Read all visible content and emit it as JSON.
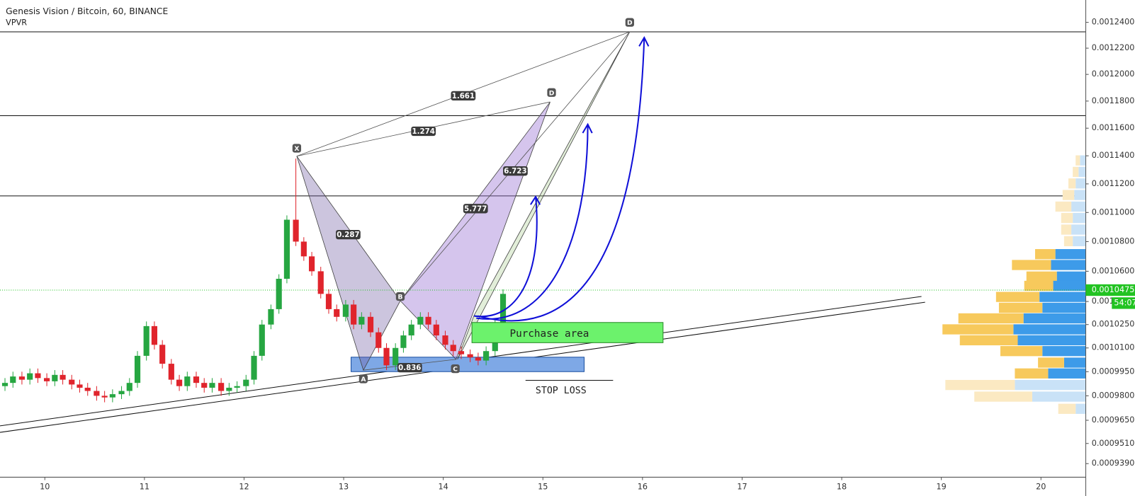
{
  "header": {
    "title": "Genesis Vision / Bitcoin, 60, BINANCE",
    "indicator": "VPVR"
  },
  "chart_data": {
    "type": "candlestick",
    "up_color": "#26a641",
    "down_color": "#e0242c",
    "log_scale": true,
    "grid": false,
    "x": [
      9.6,
      9.68,
      9.77,
      9.85,
      9.93,
      10.02,
      10.1,
      10.18,
      10.27,
      10.35,
      10.43,
      10.52,
      10.6,
      10.68,
      10.77,
      10.85,
      10.93,
      11.02,
      11.1,
      11.18,
      11.27,
      11.35,
      11.43,
      11.52,
      11.6,
      11.68,
      11.77,
      11.85,
      11.93,
      12.02,
      12.1,
      12.18,
      12.27,
      12.35,
      12.43,
      12.52,
      12.6,
      12.68,
      12.77,
      12.85,
      12.93,
      13.02,
      13.1,
      13.18,
      13.27,
      13.35,
      13.43,
      13.52,
      13.6,
      13.68,
      13.77,
      13.85,
      13.93,
      14.02,
      14.1,
      14.18,
      14.27,
      14.35,
      14.43,
      14.52,
      14.6
    ],
    "open": [
      0.000986,
      0.000988,
      0.000992,
      0.00099,
      0.000994,
      0.000991,
      0.000989,
      0.000993,
      0.00099,
      0.000987,
      0.000985,
      0.000983,
      0.00098,
      0.000979,
      0.000981,
      0.000983,
      0.000988,
      0.001005,
      0.001024,
      0.001012,
      0.001,
      0.00099,
      0.000986,
      0.000992,
      0.000988,
      0.000985,
      0.000988,
      0.000983,
      0.000985,
      0.000986,
      0.00099,
      0.001005,
      0.001025,
      0.001035,
      0.001055,
      0.001095,
      0.00108,
      0.00107,
      0.00106,
      0.001045,
      0.001035,
      0.00103,
      0.001038,
      0.001025,
      0.00103,
      0.00102,
      0.00101,
      0.000999,
      0.00101,
      0.001018,
      0.001025,
      0.00103,
      0.001025,
      0.001018,
      0.001012,
      0.001008,
      0.001006,
      0.001004,
      0.001002,
      0.001008,
      0.001025
    ],
    "high": [
      0.000991,
      0.000995,
      0.000995,
      0.000997,
      0.000997,
      0.000994,
      0.000996,
      0.000996,
      0.000993,
      0.00099,
      0.000988,
      0.000986,
      0.000983,
      0.000984,
      0.000986,
      0.000991,
      0.001008,
      0.001027,
      0.001027,
      0.001015,
      0.001003,
      0.000993,
      0.000995,
      0.000995,
      0.000991,
      0.000991,
      0.000991,
      0.000988,
      0.000989,
      0.000993,
      0.001008,
      0.001028,
      0.001038,
      0.001058,
      0.001098,
      0.001138,
      0.001083,
      0.001073,
      0.001063,
      0.001048,
      0.001038,
      0.001041,
      0.001041,
      0.001033,
      0.001033,
      0.001023,
      0.001013,
      0.001013,
      0.001021,
      0.001028,
      0.001033,
      0.001033,
      0.001028,
      0.001021,
      0.001015,
      0.001011,
      0.001009,
      0.001007,
      0.001011,
      0.001028,
      0.001048
    ],
    "low": [
      0.000983,
      0.000985,
      0.000987,
      0.000987,
      0.000988,
      0.000986,
      0.000986,
      0.000987,
      0.000984,
      0.000982,
      0.00098,
      0.000977,
      0.000976,
      0.000976,
      0.000978,
      0.00098,
      0.000985,
      0.001002,
      0.001009,
      0.000997,
      0.000987,
      0.000983,
      0.000983,
      0.000985,
      0.000982,
      0.000982,
      0.00098,
      0.00098,
      0.000982,
      0.000983,
      0.000987,
      0.001002,
      0.001022,
      0.001032,
      0.001052,
      0.001077,
      0.001067,
      0.001057,
      0.001042,
      0.001032,
      0.001027,
      0.001027,
      0.001022,
      0.001022,
      0.001017,
      0.001007,
      0.000996,
      0.000996,
      0.001007,
      0.001015,
      0.001022,
      0.001022,
      0.001015,
      0.001009,
      0.001005,
      0.001003,
      0.001001,
      0.000999,
      0.000999,
      0.001005,
      0.001022
    ],
    "close": [
      0.000988,
      0.000992,
      0.00099,
      0.000994,
      0.000991,
      0.000989,
      0.000993,
      0.00099,
      0.000987,
      0.000985,
      0.000983,
      0.00098,
      0.000979,
      0.000981,
      0.000983,
      0.000988,
      0.001005,
      0.001024,
      0.001012,
      0.001,
      0.00099,
      0.000986,
      0.000992,
      0.000988,
      0.000985,
      0.000988,
      0.000983,
      0.000985,
      0.000986,
      0.00099,
      0.001005,
      0.001025,
      0.001035,
      0.001055,
      0.001095,
      0.00108,
      0.00107,
      0.00106,
      0.001045,
      0.001035,
      0.00103,
      0.001038,
      0.001025,
      0.00103,
      0.00102,
      0.00101,
      0.000999,
      0.00101,
      0.001018,
      0.001025,
      0.00103,
      0.001025,
      0.001018,
      0.001012,
      0.001008,
      0.001006,
      0.001004,
      0.001002,
      0.001008,
      0.001025,
      0.001045
    ],
    "xlim": [
      9.55,
      20.45
    ],
    "xticks": [
      10,
      11,
      12,
      13,
      14,
      15,
      16,
      17,
      18,
      19,
      20
    ],
    "ylim": [
      0.000931,
      0.0012576
    ],
    "yticks": [
      {
        "value": 0.00124,
        "label": "0.0012400"
      },
      {
        "value": 0.00122,
        "label": "0.0012200"
      },
      {
        "value": 0.0012,
        "label": "0.0012000"
      },
      {
        "value": 0.00118,
        "label": "0.0011800"
      },
      {
        "value": 0.00116,
        "label": "0.0011600"
      },
      {
        "value": 0.00114,
        "label": "0.0011400"
      },
      {
        "value": 0.00112,
        "label": "0.0011200"
      },
      {
        "value": 0.0011,
        "label": "0.0011000"
      },
      {
        "value": 0.00108,
        "label": "0.0010800"
      },
      {
        "value": 0.00106,
        "label": "0.0010600"
      },
      {
        "value": 0.00104,
        "label": "0.0010400"
      },
      {
        "value": 0.001025,
        "label": "0.0010250"
      },
      {
        "value": 0.00101,
        "label": "0.0010100"
      },
      {
        "value": 0.000995,
        "label": "0.0009950"
      },
      {
        "value": 0.00098,
        "label": "0.0009800"
      },
      {
        "value": 0.000965,
        "label": "0.0009650"
      },
      {
        "value": 0.000951,
        "label": "0.0009510"
      },
      {
        "value": 0.000939,
        "label": "0.0009390"
      }
    ],
    "last_price": 0.0010475,
    "last_price_color": "#22c322",
    "countdown": "54:07",
    "volume_profile": {
      "price": [
        0.0011367,
        0.0011285,
        0.0011203,
        0.0011122,
        0.0011041,
        0.0010962,
        0.0010882,
        0.0010803,
        0.0010715,
        0.0010642,
        0.0010565,
        0.0010503,
        0.001043,
        0.0010359,
        0.001029,
        0.0010219,
        0.0010149,
        0.001008,
        0.0010007,
        0.0009939,
        0.0009867,
        0.0009795,
        0.000972
      ],
      "up": [
        8,
        10,
        14,
        16,
        20,
        18,
        20,
        18,
        42,
        48,
        40,
        45,
        64,
        60,
        86,
        100,
        94,
        60,
        30,
        52,
        98,
        74,
        14
      ],
      "down": [
        6,
        8,
        10,
        16,
        22,
        16,
        14,
        12,
        28,
        54,
        42,
        40,
        60,
        60,
        90,
        98,
        80,
        58,
        36,
        46,
        96,
        80,
        24
      ],
      "value_area": [
        0.00099,
        0.001076
      ],
      "up_color": "#3d9be9",
      "down_color": "#f7c95c",
      "up_faded": "#c9e2f7",
      "down_faded": "#fbe9c2"
    }
  },
  "annotations": {
    "ratios": [
      "0.287",
      "1.274",
      "1.661",
      "6.723",
      "5.777",
      "0.836"
    ],
    "points": [
      "X",
      "A",
      "B",
      "C",
      "D",
      "D"
    ],
    "purchase": "Purchase area",
    "stop_loss": "STOP LOSS"
  }
}
